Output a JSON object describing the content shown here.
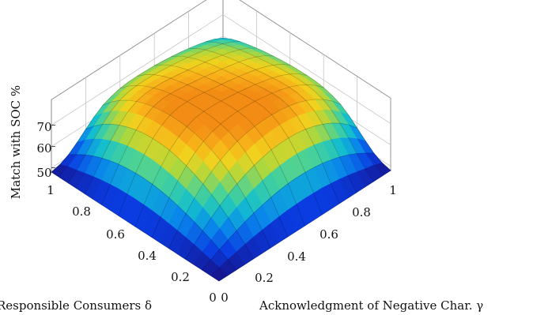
{
  "chart_data": {
    "type": "surface",
    "xlabel": "Acknowledgment of Negative Char. γ",
    "ylabel": "Responsible Consumers δ",
    "zlabel": "Match with SOC %",
    "x_ticks": [
      "0",
      "0.2",
      "0.4",
      "0.6",
      "0.8",
      "1"
    ],
    "y_ticks": [
      "0",
      "0.2",
      "0.4",
      "0.6",
      "0.8",
      "1"
    ],
    "z_ticks": [
      "50",
      "60",
      "70"
    ],
    "xlim": [
      0,
      1
    ],
    "ylim": [
      0,
      1
    ],
    "zlim": [
      48,
      80
    ],
    "colormap": "parula",
    "grid": true,
    "z_grid": [
      [
        48,
        48,
        48,
        48,
        48,
        48,
        48,
        48,
        48,
        48,
        48,
        48,
        48,
        48,
        48,
        48,
        48,
        48,
        48,
        48,
        48
      ],
      [
        48,
        49.2,
        50.3,
        51.3,
        52.3,
        53.1,
        53.8,
        54.4,
        55.0,
        55.4,
        55.6,
        55.7,
        55.6,
        55.4,
        54.9,
        54.3,
        53.5,
        52.5,
        51.4,
        50.5,
        49.0
      ],
      [
        48,
        50.3,
        52.5,
        54.4,
        56.2,
        57.8,
        59.2,
        60.4,
        61.4,
        62.2,
        62.7,
        62.9,
        62.8,
        62.4,
        61.8,
        60.8,
        59.6,
        58.0,
        56.0,
        53.6,
        51.0
      ],
      [
        48,
        51.3,
        54.4,
        57.2,
        59.7,
        61.9,
        63.8,
        65.4,
        66.8,
        67.8,
        68.5,
        68.9,
        68.9,
        68.5,
        67.8,
        66.7,
        65.2,
        63.3,
        60.9,
        57.9,
        54.2
      ],
      [
        48,
        52.3,
        56.2,
        59.7,
        62.8,
        65.5,
        67.8,
        69.7,
        71.3,
        72.5,
        73.4,
        73.8,
        73.8,
        73.5,
        72.7,
        71.5,
        69.9,
        67.8,
        65.1,
        61.8,
        57.7
      ],
      [
        48,
        53.1,
        57.8,
        61.9,
        65.5,
        68.5,
        71.1,
        73.2,
        74.8,
        76.0,
        76.8,
        77.3,
        77.3,
        77.0,
        76.3,
        75.1,
        73.5,
        71.4,
        68.7,
        65.3,
        61.1
      ],
      [
        48,
        53.8,
        59.2,
        63.8,
        67.8,
        71.1,
        73.8,
        75.9,
        77.5,
        78.6,
        79.3,
        79.6,
        79.6,
        79.2,
        78.5,
        77.4,
        75.8,
        73.8,
        71.2,
        67.9,
        63.8
      ],
      [
        48,
        54.4,
        60.4,
        65.4,
        69.7,
        73.2,
        75.9,
        78.0,
        79.4,
        80.3,
        80.8,
        80.9,
        80.7,
        80.2,
        79.4,
        78.3,
        76.8,
        74.9,
        72.4,
        69.3,
        65.4
      ],
      [
        48,
        55.0,
        61.4,
        66.8,
        71.3,
        74.8,
        77.5,
        79.4,
        80.5,
        81.1,
        81.3,
        81.2,
        80.8,
        80.2,
        79.4,
        78.4,
        77.0,
        75.3,
        73.0,
        70.2,
        66.5
      ],
      [
        48,
        55.4,
        62.2,
        67.8,
        72.5,
        76.0,
        78.6,
        80.3,
        81.1,
        81.4,
        81.3,
        81.0,
        80.5,
        79.8,
        79.0,
        78.0,
        76.8,
        75.2,
        73.1,
        70.5,
        67.0
      ],
      [
        48,
        55.6,
        62.7,
        68.5,
        73.4,
        76.8,
        79.3,
        80.8,
        81.3,
        81.3,
        81.0,
        80.5,
        79.9,
        79.2,
        78.4,
        77.4,
        76.3,
        74.8,
        72.9,
        70.4,
        67.1
      ],
      [
        48,
        55.7,
        62.9,
        68.9,
        73.8,
        77.3,
        79.6,
        80.9,
        81.2,
        81.0,
        80.5,
        79.9,
        79.2,
        78.5,
        77.7,
        76.8,
        75.7,
        74.3,
        72.5,
        70.2,
        67.0
      ],
      [
        48,
        55.6,
        62.8,
        68.9,
        73.8,
        77.3,
        79.6,
        80.7,
        80.8,
        80.5,
        79.9,
        79.2,
        78.5,
        77.8,
        77.0,
        76.1,
        75.0,
        73.7,
        72.0,
        69.8,
        66.8
      ],
      [
        48,
        55.4,
        62.4,
        68.5,
        73.5,
        77.0,
        79.2,
        80.2,
        80.2,
        79.8,
        79.2,
        78.5,
        77.8,
        77.0,
        76.2,
        75.3,
        74.3,
        73.0,
        71.4,
        69.3,
        66.4
      ],
      [
        48,
        54.9,
        61.8,
        67.8,
        72.7,
        76.3,
        78.5,
        79.4,
        79.4,
        79.0,
        78.4,
        77.7,
        77.0,
        76.2,
        75.4,
        74.5,
        73.5,
        72.3,
        70.7,
        68.7,
        65.9
      ],
      [
        48,
        54.3,
        60.8,
        66.7,
        71.5,
        75.1,
        77.4,
        78.3,
        78.4,
        78.0,
        77.4,
        76.8,
        76.1,
        75.3,
        74.5,
        73.6,
        72.6,
        71.4,
        69.9,
        68.0,
        65.3
      ],
      [
        48,
        53.5,
        59.6,
        65.2,
        69.9,
        73.5,
        75.8,
        76.8,
        77.0,
        76.8,
        76.3,
        75.7,
        75.0,
        74.3,
        73.5,
        72.6,
        71.6,
        70.4,
        69.0,
        67.1,
        64.5
      ],
      [
        48,
        52.5,
        58.0,
        63.3,
        67.8,
        71.4,
        73.8,
        74.9,
        75.3,
        75.2,
        74.8,
        74.3,
        73.7,
        73.0,
        72.3,
        71.4,
        70.4,
        69.3,
        67.9,
        66.1,
        63.6
      ],
      [
        48,
        51.4,
        56.0,
        60.9,
        65.1,
        68.7,
        71.2,
        72.4,
        73.0,
        73.1,
        72.9,
        72.5,
        72.0,
        71.4,
        70.7,
        69.9,
        69.0,
        67.9,
        66.6,
        64.9,
        62.5
      ],
      [
        48,
        50.5,
        53.6,
        57.9,
        61.8,
        65.3,
        67.9,
        69.3,
        70.2,
        70.5,
        70.4,
        70.2,
        69.8,
        69.3,
        68.7,
        68.0,
        67.1,
        66.1,
        64.9,
        63.3,
        61.1
      ],
      [
        48,
        49.0,
        51.0,
        54.2,
        57.7,
        61.1,
        63.8,
        65.4,
        66.5,
        67.0,
        67.1,
        67.0,
        66.8,
        66.4,
        65.9,
        65.3,
        64.5,
        63.6,
        62.5,
        61.1,
        59.0
      ]
    ]
  }
}
